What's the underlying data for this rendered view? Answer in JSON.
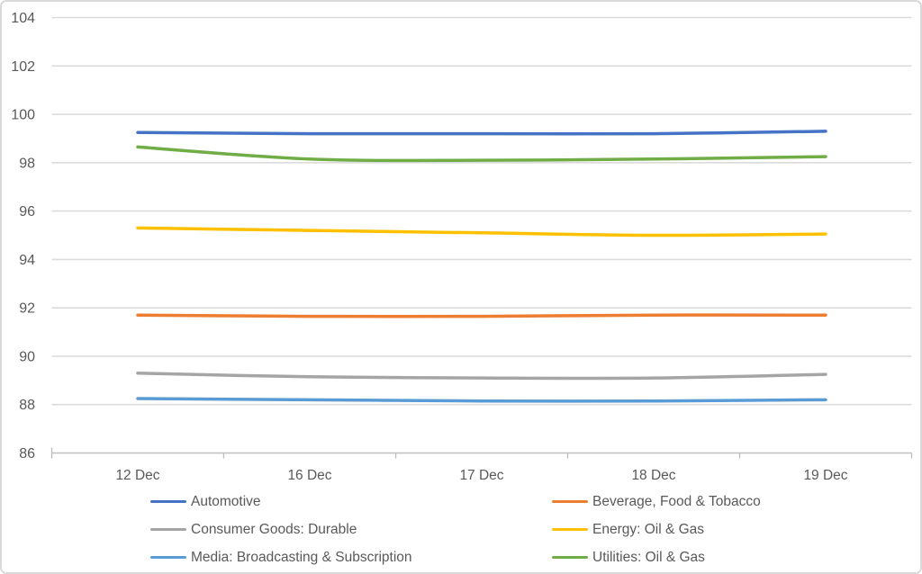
{
  "chart_data": {
    "type": "line",
    "title": "",
    "categories": [
      "12 Dec",
      "16 Dec",
      "17 Dec",
      "18 Dec",
      "19 Dec"
    ],
    "series": [
      {
        "name": "Automotive",
        "color": "#4472C4",
        "values": [
          99.25,
          99.2,
          99.2,
          99.2,
          99.3
        ]
      },
      {
        "name": "Beverage, Food & Tobacco",
        "color": "#ED7D31",
        "values": [
          91.7,
          91.65,
          91.65,
          91.7,
          91.7
        ]
      },
      {
        "name": "Consumer Goods: Durable",
        "color": "#A5A5A5",
        "values": [
          89.3,
          89.15,
          89.1,
          89.1,
          89.25
        ]
      },
      {
        "name": "Energy: Oil & Gas",
        "color": "#FFC000",
        "values": [
          95.3,
          95.2,
          95.1,
          95.0,
          95.05
        ]
      },
      {
        "name": "Media: Broadcasting & Subscription",
        "color": "#5B9BD5",
        "values": [
          88.25,
          88.2,
          88.15,
          88.15,
          88.2
        ]
      },
      {
        "name": "Utilities: Oil & Gas",
        "color": "#70AD47",
        "values": [
          98.65,
          98.15,
          98.1,
          98.15,
          98.25
        ]
      }
    ],
    "xlabel": "",
    "ylabel": "",
    "ylim": [
      86,
      104
    ],
    "y_tick_step": 2,
    "y_tick_labels": [
      "86",
      "88",
      "90",
      "92",
      "94",
      "96",
      "98",
      "100",
      "102",
      "104"
    ],
    "x_tick_labels": [
      "12 Dec",
      "16 Dec",
      "17 Dec",
      "18 Dec",
      "19 Dec"
    ],
    "grid": true,
    "smoothed": true,
    "legend_position": "bottom",
    "legend_columns": 2
  },
  "styles": {
    "gridline_color": "#DBDBDB",
    "axis_line_color": "#BFBFBF",
    "tick_color": "#BFBFBF",
    "label_color": "#595959",
    "background_color": "#FFFFFF",
    "border_color": "#D9D9D9",
    "line_width": 3.5
  }
}
